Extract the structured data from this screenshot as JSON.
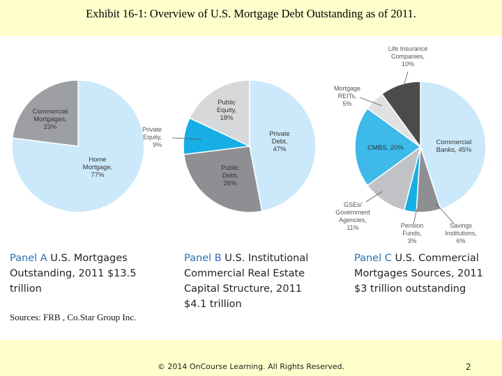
{
  "title": "Exhibit 16-1: Overview of U.S. Mortgage Debt Outstanding as of 2011.",
  "chart_data": [
    {
      "type": "pie",
      "panel": "A",
      "slices": [
        {
          "label": [
            "Home",
            "Mortgage,",
            "77%"
          ],
          "value": 77,
          "color": "#cbe9fb"
        },
        {
          "label": [
            "Commercial",
            "Mortgages,",
            "23%"
          ],
          "value": 23,
          "color": "#9d9fa2"
        }
      ]
    },
    {
      "type": "pie",
      "panel": "B",
      "slices": [
        {
          "label": [
            "Private",
            "Debt,",
            "47%"
          ],
          "value": 47,
          "color": "#cbe9fb"
        },
        {
          "label": [
            "Public",
            "Debt,",
            "26%"
          ],
          "value": 26,
          "color": "#8d8f92"
        },
        {
          "label": [
            "Private",
            "Equity,",
            "9%"
          ],
          "value": 9,
          "color": "#17aee6"
        },
        {
          "label": [
            "Public",
            "Equity,",
            "18%"
          ],
          "value": 18,
          "color": "#d7d8da"
        }
      ]
    },
    {
      "type": "pie",
      "panel": "C",
      "slices": [
        {
          "label": [
            "Commercial",
            "Banks, 45%"
          ],
          "value": 45,
          "color": "#cbe9fb"
        },
        {
          "label": [
            "Savings",
            "Institutions,",
            "6%"
          ],
          "value": 6,
          "color": "#8d8f92"
        },
        {
          "label": [
            "Pension",
            "Funds,",
            "3%"
          ],
          "value": 3,
          "color": "#17aee6"
        },
        {
          "label": [
            "GSEs/",
            "Government",
            "Agencies,",
            "11%"
          ],
          "value": 11,
          "color": "#c1c2c5"
        },
        {
          "label": [
            "CMBS, 20%"
          ],
          "value": 20,
          "color": "#3db9ea"
        },
        {
          "label": [
            "Mortgage",
            "REITs,",
            "5%"
          ],
          "value": 5,
          "color": "#e0e1e2"
        },
        {
          "label": [
            "Life Insurance",
            "Companies,",
            "10%"
          ],
          "value": 10,
          "color": "#4a4b4d"
        }
      ]
    }
  ],
  "panels": [
    {
      "tag": "Panel A",
      "text": " U.S. Mortgages Outstanding, 2011 $13.5 trillion"
    },
    {
      "tag": "Panel B",
      "text": " U.S. Institutional Commercial Real Estate Capital Structure, 2011 $4.1 trillion"
    },
    {
      "tag": "Panel C",
      "text": " U.S. Commercial Mortgages Sources, 2011 $3 trillion outstanding"
    }
  ],
  "sources": "Sources: FRB , Co.Star Group Inc.",
  "footer": {
    "copyright": "© 2014 OnCourse Learning. All Rights Reserved.",
    "page": "2"
  }
}
